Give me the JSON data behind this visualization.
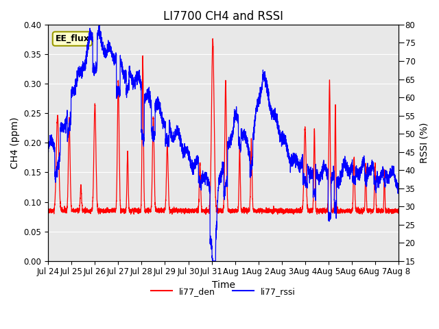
{
  "title": "LI7700 CH4 and RSSI",
  "xlabel": "Time",
  "ylabel_left": "CH4 (ppm)",
  "ylabel_right": "RSSI (%)",
  "annotation": "EE_flux",
  "legend_labels": [
    "li77_den",
    "li77_rssi"
  ],
  "legend_colors": [
    "#ff0000",
    "#0000ff"
  ],
  "ch4_ylim": [
    0.0,
    0.4
  ],
  "rssi_ylim": [
    15,
    80
  ],
  "ch4_yticks": [
    0.0,
    0.05,
    0.1,
    0.15,
    0.2,
    0.25,
    0.3,
    0.35,
    0.4
  ],
  "rssi_yticks": [
    15,
    20,
    25,
    30,
    35,
    40,
    45,
    50,
    55,
    60,
    65,
    70,
    75,
    80
  ],
  "xtick_labels": [
    "Jul 24",
    "Jul 25",
    "Jul 26",
    "Jul 27",
    "Jul 28",
    "Jul 29",
    "Jul 30",
    "Jul 31",
    "Aug 1",
    "Aug 2",
    "Aug 3",
    "Aug 4",
    "Aug 5",
    "Aug 6",
    "Aug 7",
    "Aug 8"
  ],
  "plot_bg_color": "#e8e8e8",
  "title_fontsize": 12,
  "axis_label_fontsize": 10,
  "tick_fontsize": 8.5
}
